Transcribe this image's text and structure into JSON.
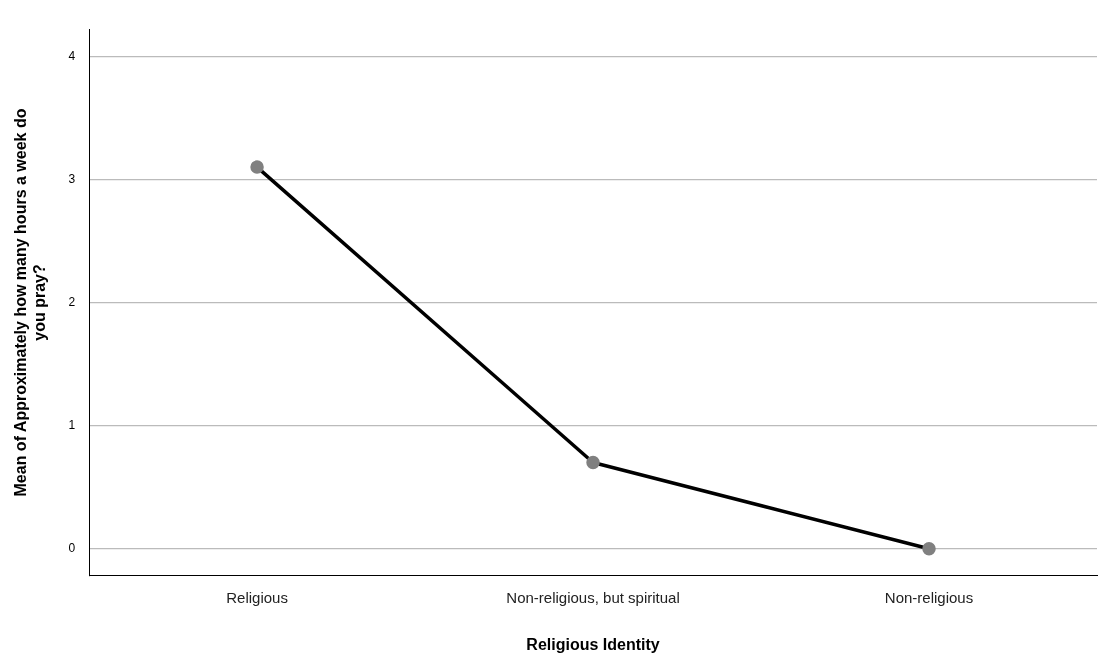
{
  "chart_data": {
    "type": "line",
    "xlabel": "Religious Identity",
    "ylabel": "Mean of Approximately how many hours a week do you pray?",
    "categories": [
      "Religious",
      "Non-religious, but spiritual",
      "Non-religious"
    ],
    "series": [
      {
        "color": "#000000",
        "values": [
          3.1,
          0.7,
          0.0
        ]
      }
    ],
    "ylim": [
      -0.22,
      4.22
    ],
    "yticks": [
      0,
      1,
      2,
      3,
      4
    ],
    "grid": "y",
    "legend": false,
    "marker": "circle",
    "line_style": "solid"
  }
}
